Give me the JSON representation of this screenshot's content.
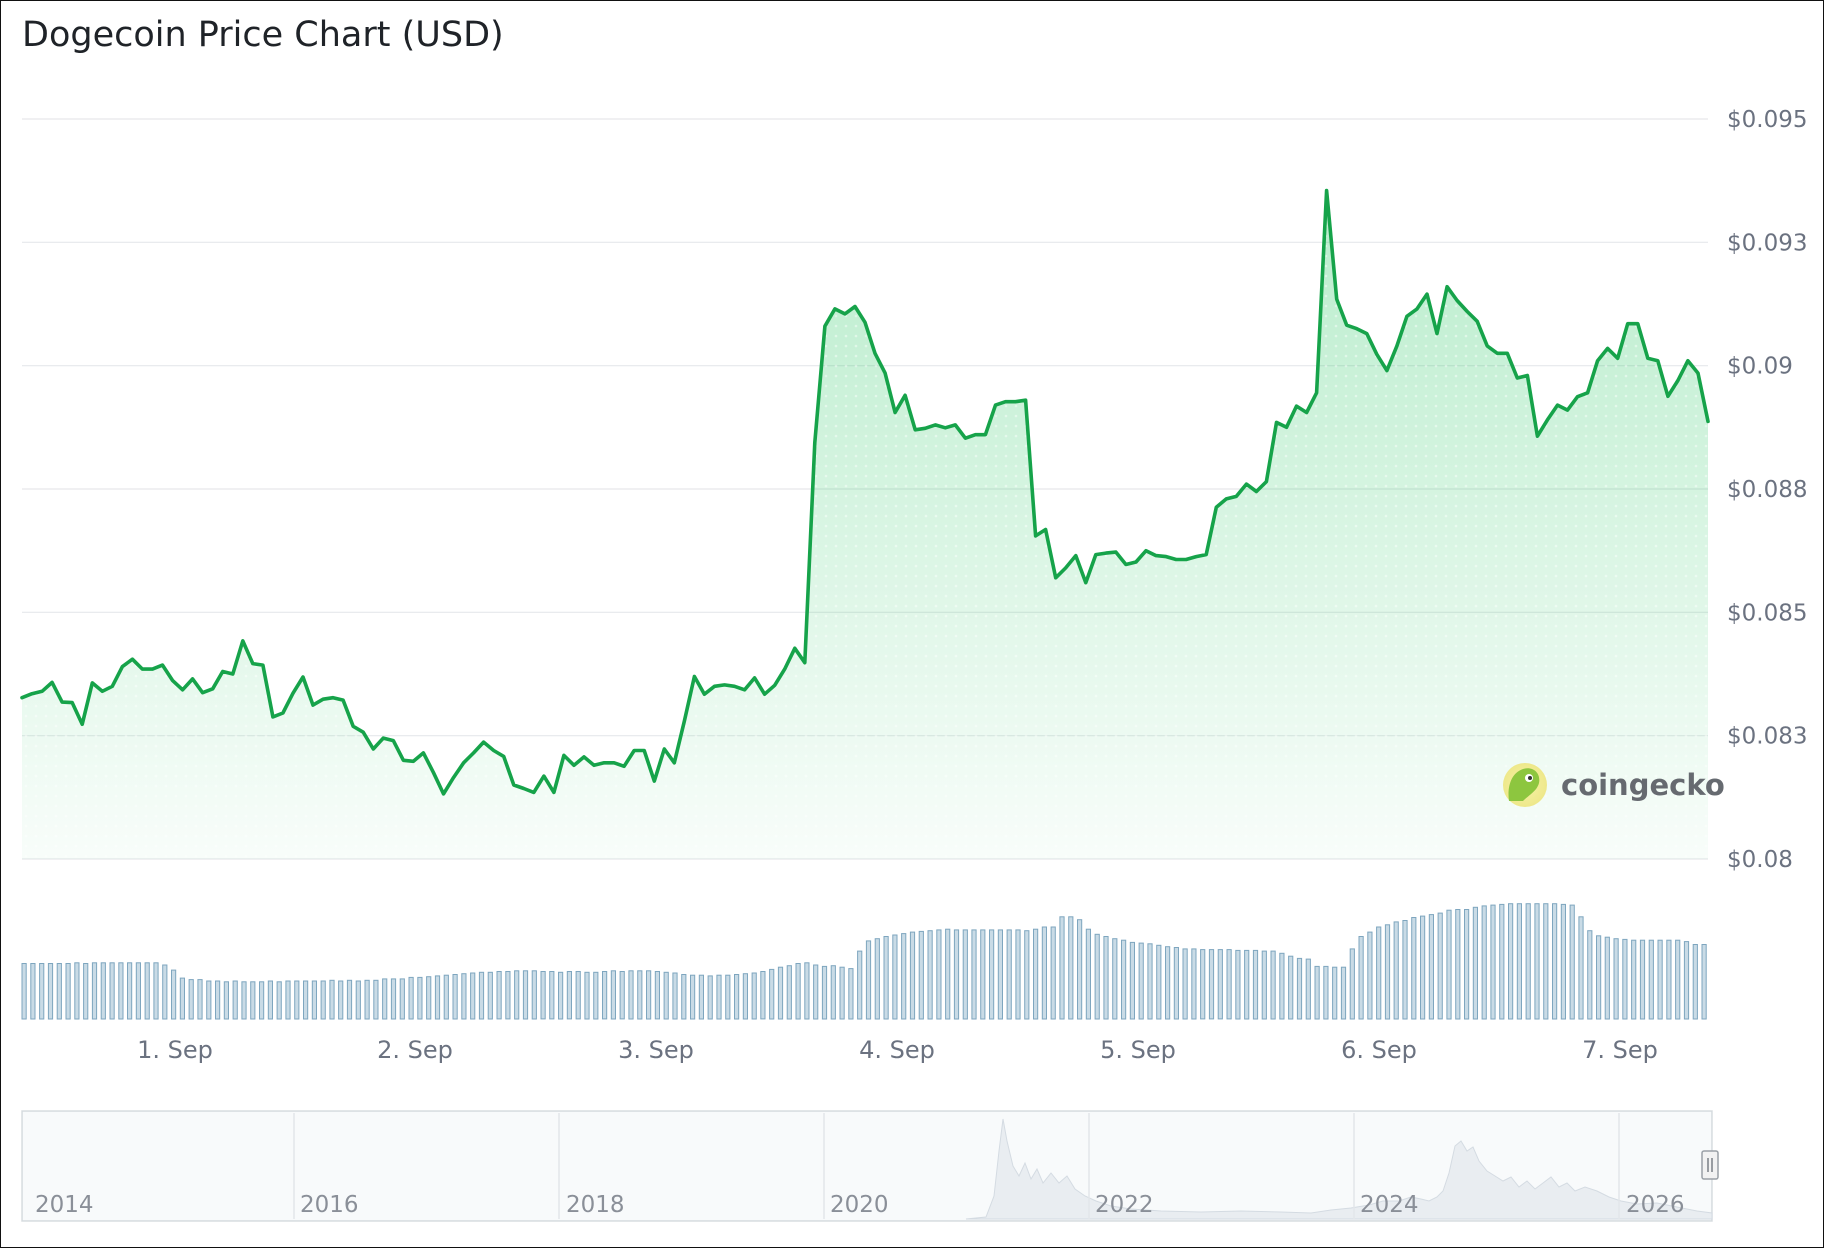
{
  "title": "Dogecoin Price Chart (USD)",
  "brand": {
    "name": "coingecko",
    "icon": "gecko-logo-icon"
  },
  "colors": {
    "line": "#16a34a",
    "area": "#22c55e",
    "volume_fill": "#c9dbe6",
    "volume_stroke": "#7ea6bf",
    "grid": "#e6e8eb",
    "navigator_fill": "#e9edf1"
  },
  "chart_data": [
    {
      "type": "area",
      "title": "Dogecoin Price Chart (USD)",
      "series": [
        {
          "values": [
            0.08327,
            0.08335,
            0.0834,
            0.08358,
            0.08318,
            0.08317,
            0.08273,
            0.08357,
            0.0834,
            0.0835,
            0.0839,
            0.08405,
            0.08385,
            0.08385,
            0.08393,
            0.08362,
            0.08343,
            0.08365,
            0.08337,
            0.08345,
            0.0838,
            0.08375,
            0.08442,
            0.08396,
            0.08393,
            0.08288,
            0.08296,
            0.08336,
            0.08369,
            0.08312,
            0.08324,
            0.08327,
            0.08322,
            0.08269,
            0.08257,
            0.08223,
            0.08245,
            0.0824,
            0.082,
            0.08198,
            0.08215,
            0.08175,
            0.08132,
            0.08165,
            0.08195,
            0.08215,
            0.08237,
            0.0822,
            0.08208,
            0.0815,
            0.08143,
            0.08135,
            0.08168,
            0.08135,
            0.0821,
            0.0819,
            0.08207,
            0.0819,
            0.08195,
            0.08195,
            0.08188,
            0.0822,
            0.0822,
            0.08158,
            0.08223,
            0.08195,
            0.0828,
            0.0837,
            0.08334,
            0.0835,
            0.08353,
            0.0835,
            0.08343,
            0.08367,
            0.08334,
            0.08352,
            0.08385,
            0.08427,
            0.08398,
            0.08844,
            0.0908,
            0.09115,
            0.09105,
            0.0912,
            0.09088,
            0.09025,
            0.08985,
            0.08905,
            0.0894,
            0.0887,
            0.08873,
            0.0888,
            0.08874,
            0.0888,
            0.08853,
            0.0886,
            0.0886,
            0.0892,
            0.08927,
            0.08927,
            0.0893,
            0.08655,
            0.08668,
            0.0857,
            0.0859,
            0.08615,
            0.0856,
            0.08617,
            0.0862,
            0.08622,
            0.08597,
            0.08602,
            0.08625,
            0.08615,
            0.08613,
            0.08607,
            0.08607,
            0.08613,
            0.08617,
            0.08713,
            0.0873,
            0.08735,
            0.0876,
            0.08745,
            0.08765,
            0.08885,
            0.08875,
            0.08918,
            0.08905,
            0.08945,
            0.09355,
            0.09135,
            0.09082,
            0.09075,
            0.09065,
            0.09023,
            0.0899,
            0.0904,
            0.091,
            0.09115,
            0.09145,
            0.09065,
            0.0916,
            0.09132,
            0.0911,
            0.0909,
            0.0904,
            0.09025,
            0.09025,
            0.08975,
            0.0898,
            0.08857,
            0.0889,
            0.0892,
            0.0891,
            0.08937,
            0.08945,
            0.0901,
            0.09035,
            0.09015,
            0.09085,
            0.09085,
            0.09015,
            0.0901,
            0.08938,
            0.0897,
            0.0901,
            0.08985,
            0.08887
          ]
        }
      ],
      "xlim": [
        "31 Aug 2025 08:00",
        "7 Sep 2025 08:00"
      ],
      "x_tick_labels": [
        "1. Sep",
        "2. Sep",
        "3. Sep",
        "4. Sep",
        "5. Sep",
        "6. Sep",
        "7. Sep"
      ],
      "y_tick_labels": [
        "$0.095",
        "$0.093",
        "$0.09",
        "$0.088",
        "$0.085",
        "$0.083",
        "$0.08"
      ],
      "ylim": [
        0.08,
        0.095
      ],
      "grid": true,
      "legend": "none"
    },
    {
      "type": "bar",
      "title": "",
      "series": [
        {
          "values": [
            7.6,
            7.6,
            7.6,
            7.6,
            7.6,
            7.6,
            7.7,
            7.6,
            7.7,
            7.7,
            7.7,
            7.7,
            7.7,
            7.7,
            7.7,
            7.7,
            7.4,
            6.7,
            5.6,
            5.4,
            5.4,
            5.2,
            5.2,
            5.1,
            5.2,
            5.1,
            5.1,
            5.1,
            5.2,
            5.1,
            5.2,
            5.2,
            5.2,
            5.2,
            5.2,
            5.3,
            5.2,
            5.3,
            5.2,
            5.3,
            5.3,
            5.5,
            5.5,
            5.5,
            5.7,
            5.7,
            5.8,
            5.9,
            6.0,
            6.1,
            6.2,
            6.3,
            6.4,
            6.4,
            6.5,
            6.5,
            6.6,
            6.6,
            6.6,
            6.5,
            6.5,
            6.4,
            6.5,
            6.5,
            6.4,
            6.4,
            6.5,
            6.6,
            6.5,
            6.6,
            6.6,
            6.6,
            6.5,
            6.4,
            6.3,
            6.1,
            6.0,
            6.0,
            5.9,
            6.0,
            6.0,
            6.1,
            6.2,
            6.3,
            6.5,
            6.8,
            7.1,
            7.3,
            7.6,
            7.7,
            7.4,
            7.2,
            7.3,
            7.1,
            6.9,
            9.3,
            10.7,
            11.0,
            11.3,
            11.5,
            11.7,
            11.9,
            12.0,
            12.1,
            12.2,
            12.3,
            12.2,
            12.2,
            12.2,
            12.2,
            12.2,
            12.2,
            12.2,
            12.2,
            12.1,
            12.3,
            12.6,
            12.6,
            14.0,
            14.0,
            13.6,
            12.3,
            11.6,
            11.3,
            11.0,
            10.8,
            10.5,
            10.4,
            10.3,
            10.1,
            9.9,
            9.8,
            9.6,
            9.6,
            9.5,
            9.5,
            9.5,
            9.5,
            9.4,
            9.4,
            9.4,
            9.3,
            9.3,
            9.0,
            8.6,
            8.3,
            8.2,
            7.2,
            7.2,
            7.1,
            7.1,
            9.6,
            11.3,
            11.9,
            12.6,
            12.9,
            13.3,
            13.5,
            13.9,
            14.1,
            14.3,
            14.5,
            14.9,
            15.0,
            15.0,
            15.3,
            15.5,
            15.6,
            15.7,
            15.8,
            15.8,
            15.8,
            15.8,
            15.8,
            15.8,
            15.7,
            15.6,
            14.0,
            12.1,
            11.4,
            11.2,
            11.0,
            10.9,
            10.8,
            10.8,
            10.8,
            10.8,
            10.8,
            10.8,
            10.6,
            10.2,
            10.2
          ]
        }
      ]
    },
    {
      "type": "area",
      "title": "",
      "x_tick_labels": [
        "2014",
        "2016",
        "2018",
        "2020",
        "2022",
        "2024",
        "2026"
      ]
    }
  ]
}
